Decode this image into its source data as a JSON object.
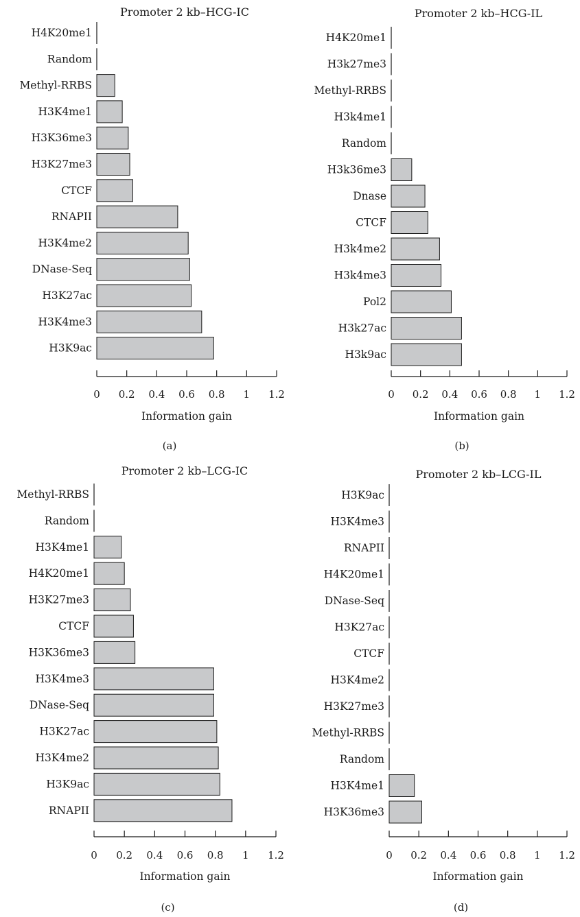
{
  "chart_data": [
    {
      "type": "bar",
      "orientation": "horizontal",
      "panel_label": "(a)",
      "title": "Promoter 2 kb–HCG-IC",
      "xlabel": "Information gain",
      "xlim": [
        0,
        1.2
      ],
      "xticks": [
        "0",
        "0.2",
        "0.4",
        "0.6",
        "0.8",
        "1",
        "1.2"
      ],
      "grid": false,
      "categories": [
        "H4K20me1",
        "Random",
        "Methyl-RRBS",
        "H3K4me1",
        "H3K36me3",
        "H3K27me3",
        "CTCF",
        "RNAPII",
        "H3K4me2",
        "DNase-Seq",
        "H3K27ac",
        "H3K4me3",
        "H3K9ac"
      ],
      "values": [
        0,
        0,
        0.12,
        0.17,
        0.21,
        0.22,
        0.24,
        0.54,
        0.61,
        0.62,
        0.63,
        0.7,
        0.78
      ]
    },
    {
      "type": "bar",
      "orientation": "horizontal",
      "panel_label": "(b)",
      "title": "Promoter 2 kb–HCG-IL",
      "xlabel": "Information gain",
      "xlim": [
        0,
        1.2
      ],
      "xticks": [
        "0",
        "0.2",
        "0.4",
        "0.6",
        "0.8",
        "1",
        "1.2"
      ],
      "grid": false,
      "categories": [
        "H4K20me1",
        "H3k27me3",
        "Methyl-RRBS",
        "H3k4me1",
        "Random",
        "H3k36me3",
        "Dnase",
        "CTCF",
        "H3k4me2",
        "H3k4me3",
        "Pol2",
        "H3k27ac",
        "H3k9ac"
      ],
      "values": [
        0,
        0,
        0,
        0,
        0,
        0.14,
        0.23,
        0.25,
        0.33,
        0.34,
        0.41,
        0.48,
        0.48
      ]
    },
    {
      "type": "bar",
      "orientation": "horizontal",
      "panel_label": "(c)",
      "title": "Promoter 2 kb–LCG-IC",
      "xlabel": "Information gain",
      "xlim": [
        0,
        1.2
      ],
      "xticks": [
        "0",
        "0.2",
        "0.4",
        "0.6",
        "0.8",
        "1",
        "1.2"
      ],
      "grid": false,
      "categories": [
        "Methyl-RRBS",
        "Random",
        "H3K4me1",
        "H4K20me1",
        "H3K27me3",
        "CTCF",
        "H3K36me3",
        "H3K4me3",
        "DNase-Seq",
        "H3K27ac",
        "H3K4me2",
        "H3K9ac",
        "RNAPII"
      ],
      "values": [
        0,
        0,
        0.18,
        0.2,
        0.24,
        0.26,
        0.27,
        0.79,
        0.79,
        0.81,
        0.82,
        0.83,
        0.91
      ]
    },
    {
      "type": "bar",
      "orientation": "horizontal",
      "panel_label": "(d)",
      "title": "Promoter 2 kb–LCG-IL",
      "xlabel": "Information gain",
      "xlim": [
        0,
        1.2
      ],
      "xticks": [
        "0",
        "0.2",
        "0.4",
        "0.6",
        "0.8",
        "1",
        "1.2"
      ],
      "grid": false,
      "categories": [
        "H3K9ac",
        "H3K4me3",
        "RNAPII",
        "H4K20me1",
        "DNase-Seq",
        "H3K27ac",
        "CTCF",
        "H3K4me2",
        "H3K27me3",
        "Methyl-RRBS",
        "Random",
        "H3K4me1",
        "H3K36me3"
      ],
      "values": [
        0,
        0,
        0,
        0,
        0,
        0,
        0,
        0,
        0,
        0,
        0,
        0.17,
        0.22
      ]
    }
  ],
  "colors": {
    "bar_fill": "#c8c9cb",
    "bar_stroke": "#1a1a1a",
    "text": "#1a1a1a",
    "background": "#ffffff"
  }
}
